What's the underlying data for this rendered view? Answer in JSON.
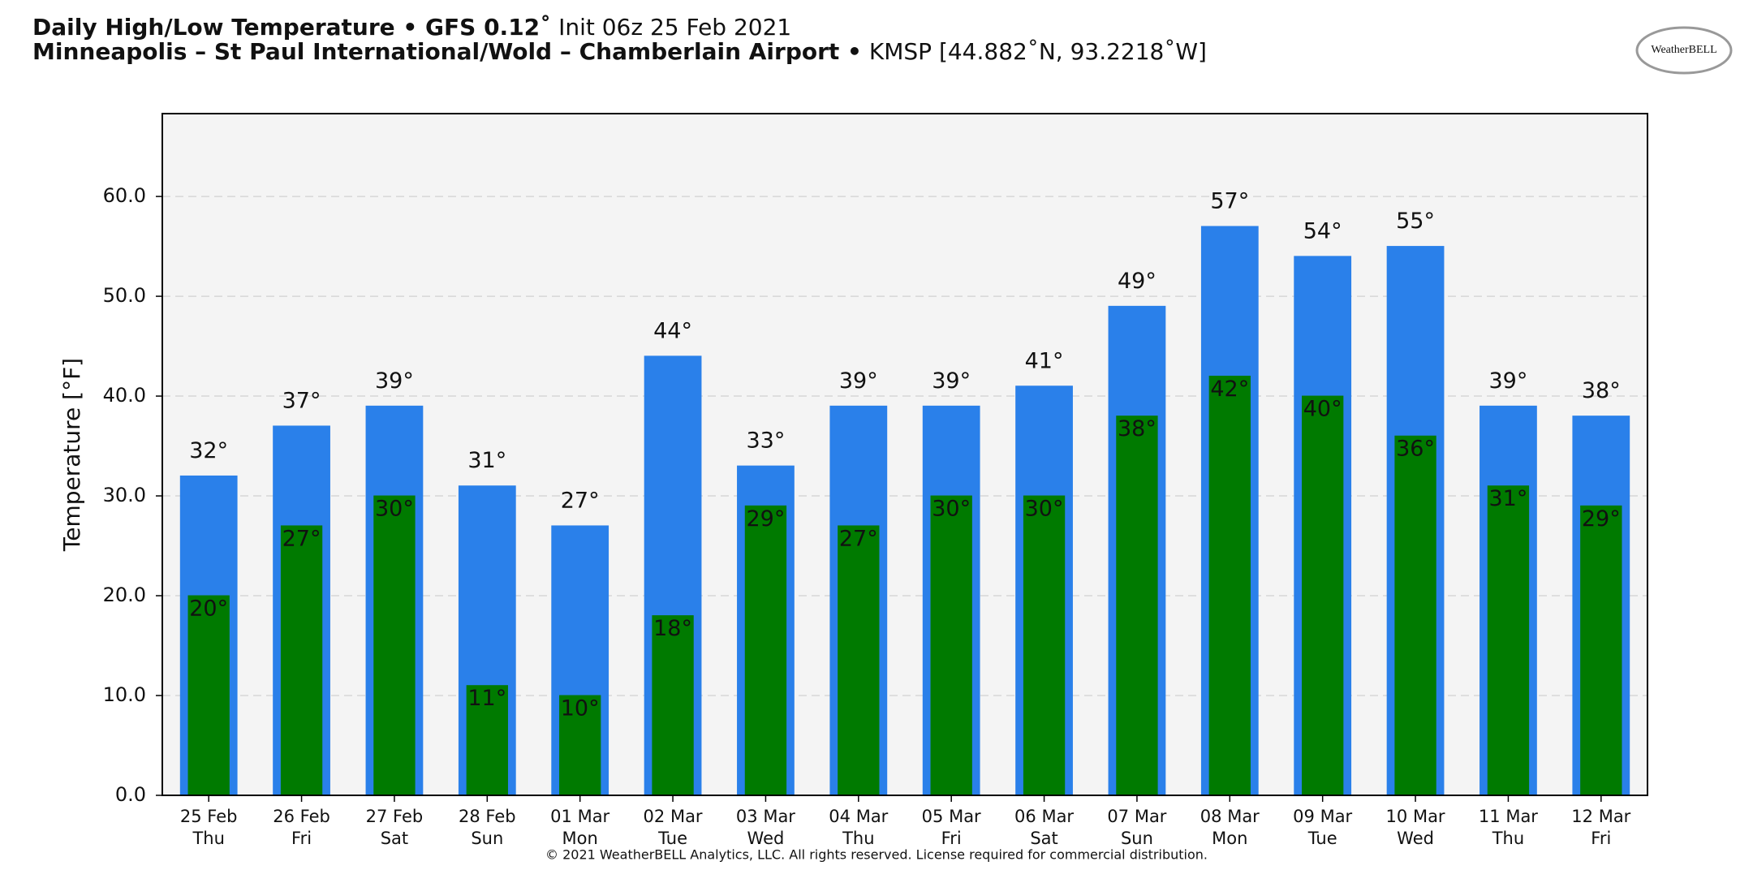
{
  "header": {
    "title": "Daily High/Low Temperature • GFS 0.12˚",
    "init": "Init 06z 25 Feb 2021",
    "station": "Minneapolis – St Paul International/Wold – Chamberlain Airport •",
    "location": "KMSP [44.882˚N, 93.2218˚W]",
    "logo": "WeatherBELL"
  },
  "footer": "© 2021 WeatherBELL Analytics, LLC. All rights reserved. License required for commercial distribution.",
  "chart_data": {
    "type": "bar",
    "y_label": "Temperature [°F]",
    "categories": [
      [
        "25 Feb",
        "Thu"
      ],
      [
        "26 Feb",
        "Fri"
      ],
      [
        "27 Feb",
        "Sat"
      ],
      [
        "28 Feb",
        "Sun"
      ],
      [
        "01 Mar",
        "Mon"
      ],
      [
        "02 Mar",
        "Tue"
      ],
      [
        "03 Mar",
        "Wed"
      ],
      [
        "04 Mar",
        "Thu"
      ],
      [
        "05 Mar",
        "Fri"
      ],
      [
        "06 Mar",
        "Sat"
      ],
      [
        "07 Mar",
        "Sun"
      ],
      [
        "08 Mar",
        "Mon"
      ],
      [
        "09 Mar",
        "Tue"
      ],
      [
        "10 Mar",
        "Wed"
      ],
      [
        "11 Mar",
        "Thu"
      ],
      [
        "12 Mar",
        "Fri"
      ]
    ],
    "series": [
      {
        "color": "#2a80ea",
        "values": [
          32,
          37,
          39,
          31,
          27,
          44,
          33,
          39,
          39,
          41,
          49,
          57,
          54,
          55,
          39,
          38
        ],
        "value_labels": [
          "32°",
          "37°",
          "39°",
          "31°",
          "27°",
          "44°",
          "33°",
          "39°",
          "39°",
          "41°",
          "49°",
          "57°",
          "54°",
          "55°",
          "39°",
          "38°"
        ]
      },
      {
        "color": "#007a00",
        "values": [
          20,
          27,
          30,
          11,
          10,
          18,
          29,
          27,
          30,
          30,
          38,
          42,
          40,
          36,
          31,
          29
        ],
        "value_labels": [
          "20°",
          "27°",
          "30°",
          "11°",
          "10°",
          "18°",
          "29°",
          "27°",
          "30°",
          "30°",
          "38°",
          "42°",
          "40°",
          "36°",
          "31°",
          "29°"
        ]
      }
    ],
    "ylim": [
      0,
      68.3
    ],
    "yticks": [
      {
        "value": 0,
        "label": "0.0"
      },
      {
        "value": 10,
        "label": "10.0"
      },
      {
        "value": 20,
        "label": "20.0"
      },
      {
        "value": 30,
        "label": "30.0"
      },
      {
        "value": 40,
        "label": "40.0"
      },
      {
        "value": 50,
        "label": "50.0"
      },
      {
        "value": 60,
        "label": "60.0"
      }
    ],
    "grid": true
  }
}
